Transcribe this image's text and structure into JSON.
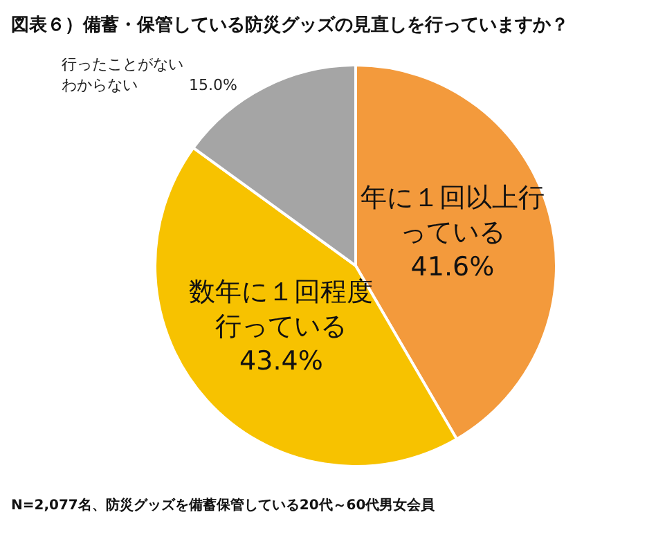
{
  "chart_data": {
    "type": "pie",
    "title": "図表６）備蓄・保管している防災グッズの見直しを行っていますか？",
    "categories": [
      "年に１回以上行っている",
      "数年に１回程度行っている",
      "行ったことがないわからない"
    ],
    "values": [
      41.6,
      43.4,
      15.0
    ],
    "colors": [
      "#f39a3c",
      "#f7c200",
      "#a5a5a5"
    ],
    "value_labels": [
      "41.6%",
      "43.4%",
      "15.0%"
    ],
    "annotations": [
      "N=2,077名、防災グッズを備蓄保管している20代～60代男女会員"
    ]
  }
}
